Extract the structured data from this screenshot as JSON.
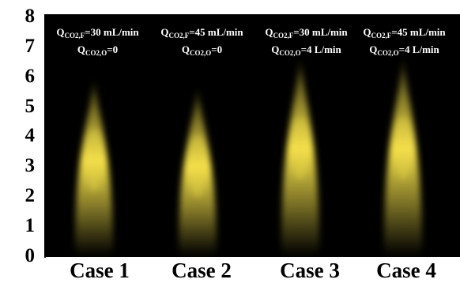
{
  "y_axis": {
    "ticks": [
      "0",
      "1",
      "2",
      "3",
      "4",
      "5",
      "6",
      "7",
      "8"
    ],
    "min": 0,
    "max": 8
  },
  "panels": [
    {
      "case_label": "Case 1",
      "line1": {
        "q": "Q",
        "sub": "CO2,F",
        "rest": "=30 mL/min"
      },
      "line2": {
        "q": "Q",
        "sub": "CO2,O",
        "rest": "=0"
      },
      "flame_height": 6.0,
      "bright_level": 3.2,
      "flame_color": "#f4e04a"
    },
    {
      "case_label": "Case 2",
      "line1": {
        "q": "Q",
        "sub": "CO2,F",
        "rest": "=45 mL/min"
      },
      "line2": {
        "q": "Q",
        "sub": "CO2,O",
        "rest": "=0"
      },
      "flame_height": 5.7,
      "bright_level": 3.0,
      "flame_color": "#f4e04a"
    },
    {
      "case_label": "Case 3",
      "line1": {
        "q": "Q",
        "sub": "CO2,F",
        "rest": "=30 mL/min"
      },
      "line2": {
        "q": "Q",
        "sub": "CO2,O",
        "rest": "=4 L/min"
      },
      "flame_height": 6.7,
      "bright_level": 3.6,
      "flame_color": "#f4e04a"
    },
    {
      "case_label": "Case 4",
      "line1": {
        "q": "Q",
        "sub": "CO2,F",
        "rest": "=45 mL/min"
      },
      "line2": {
        "q": "Q",
        "sub": "CO2,O",
        "rest": "=4 L/min"
      },
      "flame_height": 6.7,
      "bright_level": 3.6,
      "flame_color": "#f4e04a"
    }
  ],
  "colors": {
    "background": "#000000",
    "axis": "#000000",
    "text_on_image": "#ffffff"
  }
}
